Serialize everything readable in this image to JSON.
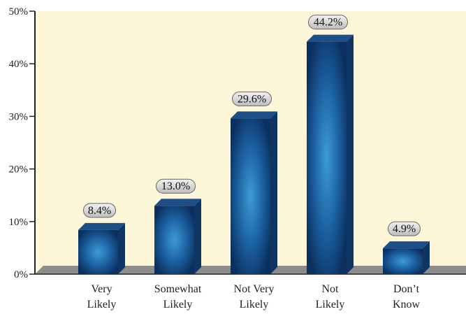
{
  "chart_data": {
    "type": "bar",
    "categories": [
      [
        "Very",
        "Likely"
      ],
      [
        "Somewhat",
        "Likely"
      ],
      [
        "Not Very",
        "Likely"
      ],
      [
        "Not",
        "Likely"
      ],
      [
        "Don’t",
        "Know"
      ]
    ],
    "values": [
      8.4,
      13.0,
      29.6,
      44.2,
      4.9
    ],
    "data_labels": [
      "8.4%",
      "13.0%",
      "29.6%",
      "44.2%",
      "4.9%"
    ],
    "y_ticks": [
      "0%",
      "10%",
      "20%",
      "30%",
      "40%",
      "50%"
    ],
    "ylim": [
      0,
      50
    ],
    "grid": false,
    "colors": {
      "plot_background": "#fdf6d8",
      "bar_light": "#3c9bd6",
      "bar_dark": "#0b2f5e",
      "bar_top": "#1d4f86",
      "bar_side": "#0f3562",
      "floor": "#8c8c8c",
      "label_fill": "#d8d8d8",
      "label_stroke": "#666666"
    }
  }
}
